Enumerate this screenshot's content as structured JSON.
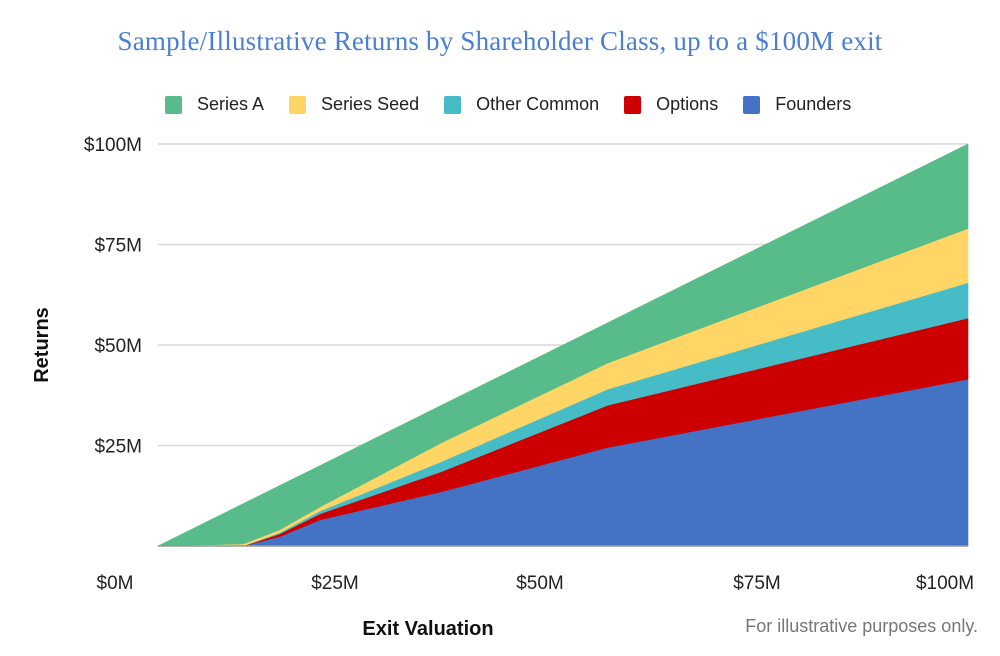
{
  "chart_data": {
    "type": "area",
    "stacked": true,
    "title": "Sample/Illustrative Returns by Shareholder Class, up to a $100M exit",
    "xlabel": "Exit Valuation",
    "ylabel": "Returns",
    "xlim": [
      0,
      100
    ],
    "ylim": [
      0,
      100
    ],
    "x_ticks": [
      {
        "value": 0,
        "label": "$0M"
      },
      {
        "value": 25,
        "label": "$25M"
      },
      {
        "value": 50,
        "label": "$50M"
      },
      {
        "value": 75,
        "label": "$75M"
      },
      {
        "value": 100,
        "label": "$100M"
      }
    ],
    "y_ticks": [
      {
        "value": 25,
        "label": "$25M"
      },
      {
        "value": 50,
        "label": "$50M"
      },
      {
        "value": 75,
        "label": "$75M"
      },
      {
        "value": 100,
        "label": "$100M"
      }
    ],
    "grid": true,
    "legend_position": "top",
    "unit": "$M",
    "x": [
      0,
      10.5,
      15,
      20,
      35,
      55.5,
      100
    ],
    "series_stack_order": "bottom-to-top",
    "series": [
      {
        "name": "Founders",
        "color": "#4472c4",
        "values": [
          0,
          0,
          2.3,
          6.5,
          13.5,
          24.5,
          41.5
        ]
      },
      {
        "name": "Options",
        "color": "#cc0000",
        "values": [
          0,
          0,
          0.7,
          1.5,
          5.0,
          10.5,
          15.2
        ]
      },
      {
        "name": "Other Common",
        "color": "#46bdc6",
        "values": [
          0,
          0,
          0.3,
          0.7,
          2.5,
          4.0,
          8.8
        ]
      },
      {
        "name": "Series Seed",
        "color": "#ffd666",
        "values": [
          0,
          0.5,
          0.7,
          1.0,
          4.7,
          6.5,
          13.5
        ]
      },
      {
        "name": "Series A",
        "color": "#57bb8a",
        "values": [
          0,
          10.0,
          11.0,
          10.3,
          9.3,
          10.0,
          21.0
        ]
      }
    ],
    "legend": [
      {
        "name": "Series A",
        "color": "#57bb8a"
      },
      {
        "name": "Series Seed",
        "color": "#ffd666"
      },
      {
        "name": "Other Common",
        "color": "#46bdc6"
      },
      {
        "name": "Options",
        "color": "#cc0000"
      },
      {
        "name": "Founders",
        "color": "#4472c4"
      }
    ],
    "annotation": "For illustrative purposes only."
  },
  "colors": {
    "title": "#4a7fd1",
    "grid": "#d9d9d9",
    "baseline": "#999999"
  }
}
